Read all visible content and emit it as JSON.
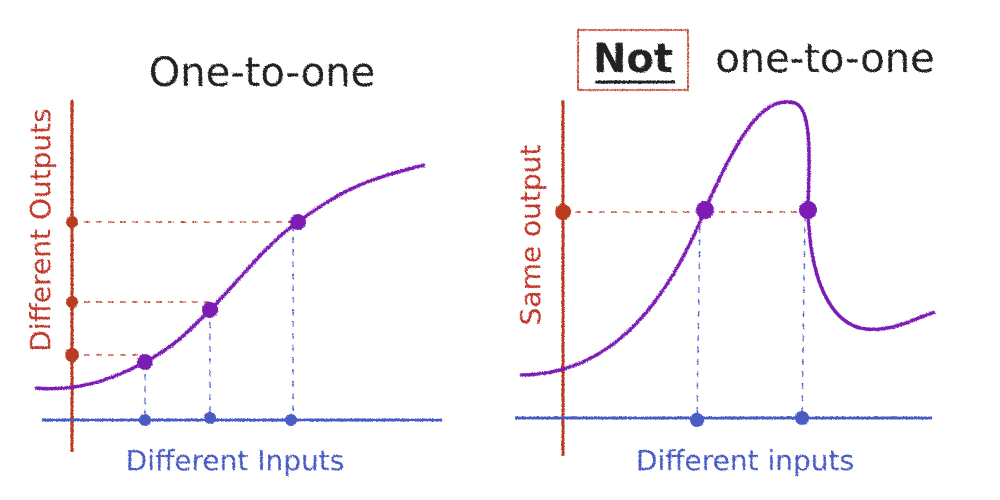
{
  "left": {
    "title": "One-to-one",
    "y_label": "Different Outputs",
    "x_label": "Different Inputs"
  },
  "right": {
    "title_emphasis": "Not",
    "title": "one-to-one",
    "y_label": "Same output",
    "x_label": "Different inputs"
  }
}
